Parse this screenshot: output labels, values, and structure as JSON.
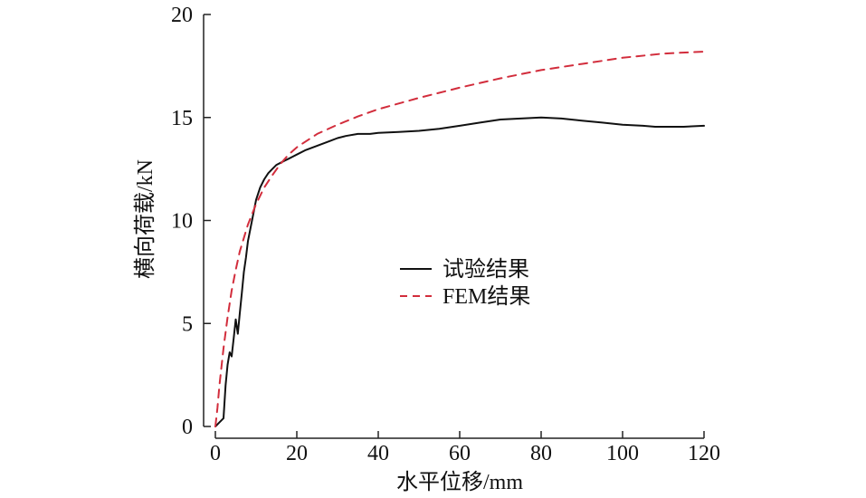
{
  "chart_data": {
    "type": "line",
    "title": "",
    "xlabel": "水平位移/mm",
    "ylabel": "横向荷载/kN",
    "xlim": [
      0,
      120
    ],
    "ylim": [
      0,
      20
    ],
    "xticks": [
      0,
      20,
      40,
      60,
      80,
      100,
      120
    ],
    "yticks": [
      0,
      5,
      10,
      15,
      20
    ],
    "grid": false,
    "legend_position": "center",
    "series": [
      {
        "name": "试验结果",
        "color": "#111111",
        "style": "solid",
        "x": [
          0,
          1,
          2,
          2.5,
          3,
          3.5,
          4,
          4.5,
          5,
          5.5,
          6,
          6.5,
          7,
          7.5,
          8,
          9,
          10,
          11,
          12,
          13,
          14,
          15,
          16,
          17,
          18,
          19,
          20,
          22,
          24,
          26,
          28,
          30,
          32,
          35,
          38,
          40,
          45,
          50,
          55,
          60,
          65,
          70,
          75,
          80,
          85,
          90,
          95,
          100,
          105,
          108,
          110,
          115,
          120
        ],
        "y": [
          0,
          0.2,
          0.4,
          2.0,
          3.0,
          3.6,
          3.4,
          4.3,
          5.2,
          4.5,
          5.5,
          6.5,
          7.5,
          8.2,
          9.0,
          10.0,
          11.0,
          11.6,
          12.0,
          12.3,
          12.5,
          12.7,
          12.8,
          12.9,
          13.0,
          13.1,
          13.2,
          13.4,
          13.55,
          13.7,
          13.85,
          14.0,
          14.1,
          14.2,
          14.2,
          14.25,
          14.3,
          14.35,
          14.45,
          14.6,
          14.75,
          14.9,
          14.95,
          15.0,
          14.95,
          14.85,
          14.75,
          14.65,
          14.6,
          14.55,
          14.55,
          14.55,
          14.6
        ]
      },
      {
        "name": "FEM结果",
        "color": "#d22d3c",
        "style": "dashed",
        "x": [
          0,
          0.5,
          1,
          2,
          3,
          4,
          5,
          6,
          8,
          10,
          12,
          14,
          16,
          18,
          20,
          25,
          30,
          35,
          40,
          50,
          60,
          70,
          80,
          90,
          100,
          110,
          120
        ],
        "y": [
          0,
          0.9,
          2.0,
          3.8,
          5.3,
          6.6,
          7.6,
          8.5,
          9.8,
          10.8,
          11.6,
          12.2,
          12.75,
          13.2,
          13.55,
          14.2,
          14.65,
          15.05,
          15.4,
          15.95,
          16.45,
          16.9,
          17.3,
          17.6,
          17.9,
          18.1,
          18.2
        ]
      }
    ]
  }
}
